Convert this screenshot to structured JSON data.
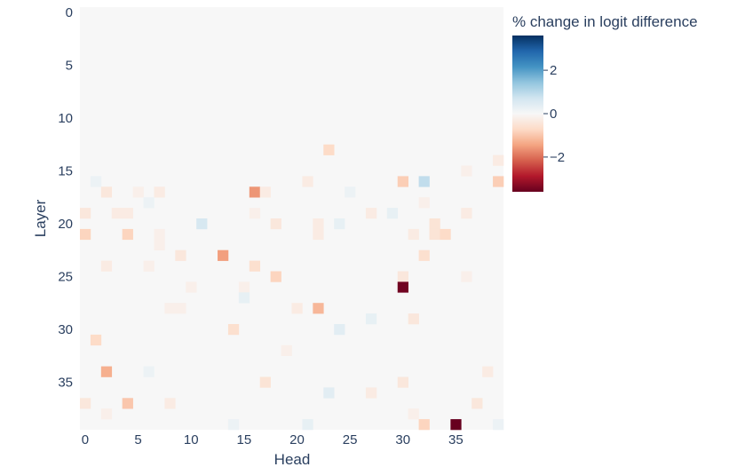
{
  "chart_data": {
    "type": "heatmap",
    "title": "",
    "xlabel": "Head",
    "ylabel": "Layer",
    "x_range": [
      0,
      39
    ],
    "y_range": [
      0,
      39
    ],
    "y_reversed": true,
    "x_ticks": [
      0,
      5,
      10,
      15,
      20,
      25,
      30,
      35
    ],
    "y_ticks": [
      0,
      5,
      10,
      15,
      20,
      25,
      30,
      35
    ],
    "background_value": 0,
    "colorbar": {
      "title": "% change in logit difference",
      "zmin": -3.6,
      "zmax": 3.6,
      "ticks": [
        2,
        0,
        -2
      ],
      "tick_labels": [
        "2",
        "0",
        "−2"
      ],
      "colorscale": [
        "#67001f",
        "#b2182b",
        "#d6604d",
        "#f4a582",
        "#fddbc7",
        "#f7f7f7",
        "#d1e5f0",
        "#92c5de",
        "#4393c3",
        "#2166ac",
        "#053061"
      ]
    },
    "cells": [
      {
        "layer": 13,
        "head": 23,
        "value": -0.7
      },
      {
        "layer": 14,
        "head": 39,
        "value": -0.3
      },
      {
        "layer": 15,
        "head": 36,
        "value": -0.2
      },
      {
        "layer": 16,
        "head": 1,
        "value": 0.2
      },
      {
        "layer": 16,
        "head": 21,
        "value": -0.3
      },
      {
        "layer": 16,
        "head": 30,
        "value": -0.9
      },
      {
        "layer": 16,
        "head": 32,
        "value": 0.9
      },
      {
        "layer": 16,
        "head": 39,
        "value": -0.9
      },
      {
        "layer": 17,
        "head": 2,
        "value": -0.4
      },
      {
        "layer": 17,
        "head": 5,
        "value": -0.2
      },
      {
        "layer": 17,
        "head": 7,
        "value": -0.3
      },
      {
        "layer": 17,
        "head": 16,
        "value": -1.6
      },
      {
        "layer": 17,
        "head": 17,
        "value": -0.3
      },
      {
        "layer": 17,
        "head": 25,
        "value": 0.2
      },
      {
        "layer": 18,
        "head": 6,
        "value": 0.2
      },
      {
        "layer": 18,
        "head": 32,
        "value": -0.2
      },
      {
        "layer": 19,
        "head": 0,
        "value": -0.4
      },
      {
        "layer": 19,
        "head": 3,
        "value": -0.3
      },
      {
        "layer": 19,
        "head": 4,
        "value": -0.3
      },
      {
        "layer": 19,
        "head": 16,
        "value": -0.2
      },
      {
        "layer": 19,
        "head": 27,
        "value": -0.3
      },
      {
        "layer": 19,
        "head": 29,
        "value": 0.3
      },
      {
        "layer": 19,
        "head": 36,
        "value": -0.3
      },
      {
        "layer": 20,
        "head": 11,
        "value": 0.6
      },
      {
        "layer": 20,
        "head": 18,
        "value": -0.4
      },
      {
        "layer": 20,
        "head": 22,
        "value": -0.3
      },
      {
        "layer": 20,
        "head": 24,
        "value": 0.3
      },
      {
        "layer": 20,
        "head": 33,
        "value": -0.5
      },
      {
        "layer": 21,
        "head": 0,
        "value": -0.8
      },
      {
        "layer": 21,
        "head": 4,
        "value": -0.8
      },
      {
        "layer": 21,
        "head": 7,
        "value": -0.2
      },
      {
        "layer": 21,
        "head": 22,
        "value": -0.3
      },
      {
        "layer": 21,
        "head": 31,
        "value": -0.3
      },
      {
        "layer": 21,
        "head": 33,
        "value": -0.5
      },
      {
        "layer": 21,
        "head": 34,
        "value": -0.7
      },
      {
        "layer": 22,
        "head": 7,
        "value": -0.2
      },
      {
        "layer": 23,
        "head": 9,
        "value": -0.4
      },
      {
        "layer": 23,
        "head": 13,
        "value": -1.5
      },
      {
        "layer": 23,
        "head": 32,
        "value": -0.6
      },
      {
        "layer": 24,
        "head": 2,
        "value": -0.3
      },
      {
        "layer": 24,
        "head": 6,
        "value": -0.2
      },
      {
        "layer": 24,
        "head": 16,
        "value": -0.6
      },
      {
        "layer": 25,
        "head": 18,
        "value": -0.8
      },
      {
        "layer": 25,
        "head": 30,
        "value": -0.4
      },
      {
        "layer": 25,
        "head": 36,
        "value": -0.2
      },
      {
        "layer": 26,
        "head": 10,
        "value": -0.2
      },
      {
        "layer": 26,
        "head": 15,
        "value": -0.2
      },
      {
        "layer": 26,
        "head": 30,
        "value": -3.5
      },
      {
        "layer": 27,
        "head": 15,
        "value": 0.3
      },
      {
        "layer": 28,
        "head": 8,
        "value": -0.2
      },
      {
        "layer": 28,
        "head": 9,
        "value": -0.2
      },
      {
        "layer": 28,
        "head": 20,
        "value": -0.3
      },
      {
        "layer": 28,
        "head": 22,
        "value": -1.2
      },
      {
        "layer": 29,
        "head": 27,
        "value": 0.3
      },
      {
        "layer": 29,
        "head": 31,
        "value": -0.4
      },
      {
        "layer": 30,
        "head": 14,
        "value": -0.6
      },
      {
        "layer": 30,
        "head": 24,
        "value": 0.4
      },
      {
        "layer": 31,
        "head": 1,
        "value": -0.7
      },
      {
        "layer": 32,
        "head": 19,
        "value": -0.2
      },
      {
        "layer": 34,
        "head": 2,
        "value": -1.3
      },
      {
        "layer": 34,
        "head": 6,
        "value": 0.2
      },
      {
        "layer": 34,
        "head": 38,
        "value": -0.3
      },
      {
        "layer": 35,
        "head": 17,
        "value": -0.5
      },
      {
        "layer": 35,
        "head": 30,
        "value": -0.4
      },
      {
        "layer": 36,
        "head": 23,
        "value": 0.4
      },
      {
        "layer": 36,
        "head": 27,
        "value": -0.3
      },
      {
        "layer": 37,
        "head": 0,
        "value": -0.4
      },
      {
        "layer": 37,
        "head": 4,
        "value": -1.0
      },
      {
        "layer": 37,
        "head": 8,
        "value": -0.3
      },
      {
        "layer": 37,
        "head": 37,
        "value": -0.4
      },
      {
        "layer": 38,
        "head": 2,
        "value": -0.2
      },
      {
        "layer": 38,
        "head": 31,
        "value": -0.2
      },
      {
        "layer": 39,
        "head": 14,
        "value": 0.2
      },
      {
        "layer": 39,
        "head": 21,
        "value": 0.3
      },
      {
        "layer": 39,
        "head": 32,
        "value": -0.8
      },
      {
        "layer": 39,
        "head": 35,
        "value": -3.6
      },
      {
        "layer": 39,
        "head": 39,
        "value": 0.2
      }
    ]
  }
}
